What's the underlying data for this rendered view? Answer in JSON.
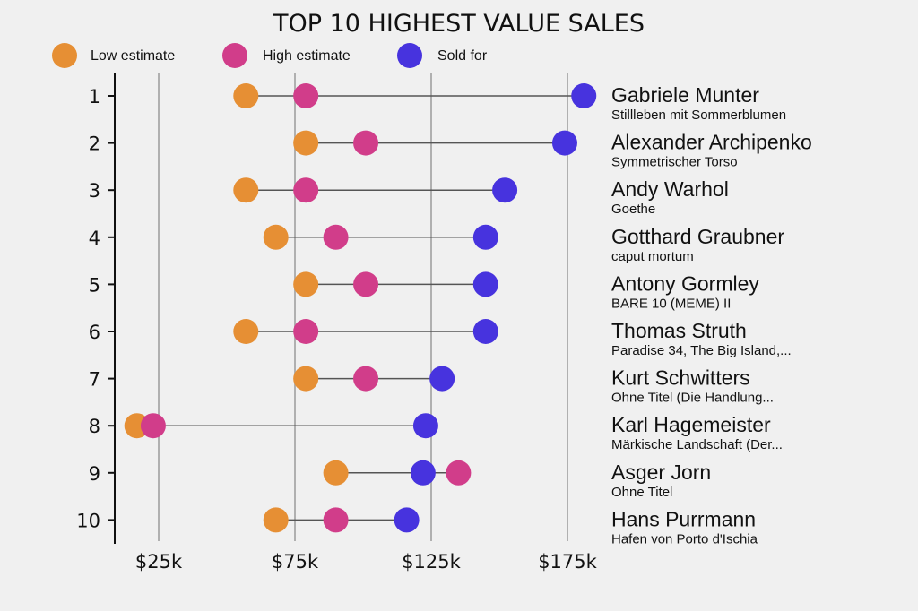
{
  "chart_data": {
    "type": "dot-range",
    "title": "TOP 10 HIGHEST VALUE SALES",
    "xlabel": "",
    "ylabel": "",
    "xlim": [
      9,
      184
    ],
    "grid": true,
    "legend_placement": "top-left",
    "x_ticks": [
      {
        "value": 25,
        "label": "$25k"
      },
      {
        "value": 75,
        "label": "$75k"
      },
      {
        "value": 125,
        "label": "$125k"
      },
      {
        "value": 175,
        "label": "$175k"
      }
    ],
    "colors": {
      "low": "#e68f34",
      "high": "#d13d8a",
      "sold": "#4733de",
      "background": "#f0f0f0",
      "grid": "#b0b0b0",
      "connector": "#555555"
    },
    "series": [
      {
        "key": "low",
        "name": "Low estimate"
      },
      {
        "key": "high",
        "name": "High estimate"
      },
      {
        "key": "sold",
        "name": "Sold for"
      }
    ],
    "rows": [
      {
        "rank": "1",
        "artist": "Gabriele Munter",
        "work": "Stillleben mit Sommerblumen",
        "low": 57,
        "high": 79,
        "sold": 181
      },
      {
        "rank": "2",
        "artist": "Alexander Archipenko",
        "work": "Symmetrischer Torso",
        "low": 79,
        "high": 101,
        "sold": 174
      },
      {
        "rank": "3",
        "artist": "Andy Warhol",
        "work": "Goethe",
        "low": 57,
        "high": 79,
        "sold": 152
      },
      {
        "rank": "4",
        "artist": "Gotthard Graubner",
        "work": "caput mortum",
        "low": 68,
        "high": 90,
        "sold": 145
      },
      {
        "rank": "5",
        "artist": "Antony Gormley",
        "work": "BARE 10 (MEME) II",
        "low": 79,
        "high": 101,
        "sold": 145
      },
      {
        "rank": "6",
        "artist": "Thomas Struth",
        "work": "Paradise 34, The Big Island,...",
        "low": 57,
        "high": 79,
        "sold": 145
      },
      {
        "rank": "7",
        "artist": "Kurt Schwitters",
        "work": "Ohne Titel (Die Handlung...",
        "low": 79,
        "high": 101,
        "sold": 129
      },
      {
        "rank": "8",
        "artist": "Karl Hagemeister",
        "work": "Märkische Landschaft (Der...",
        "low": 17,
        "high": 23,
        "sold": 123
      },
      {
        "rank": "9",
        "artist": "Asger Jorn",
        "work": "Ohne Titel",
        "low": 90,
        "high": 135,
        "sold": 122
      },
      {
        "rank": "10",
        "artist": "Hans Purrmann",
        "work": "Hafen von Porto d'Ischia",
        "low": 68,
        "high": 90,
        "sold": 116
      }
    ]
  }
}
